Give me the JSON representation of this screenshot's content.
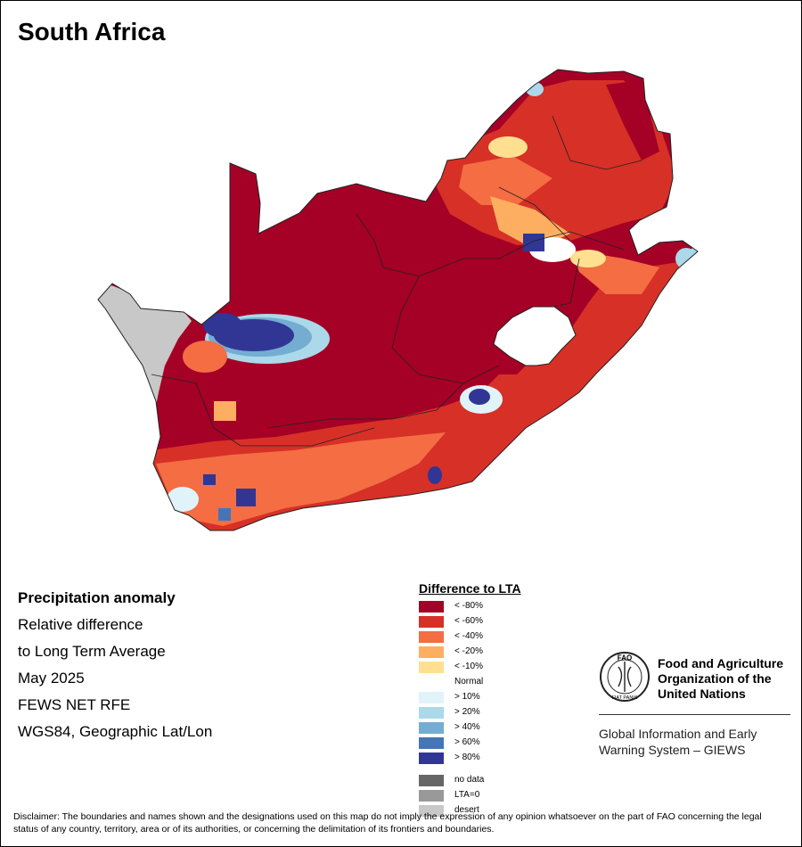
{
  "map": {
    "title": "South Africa",
    "info": {
      "heading": "Precipitation anomaly",
      "line1": "Relative difference",
      "line2": "to Long Term Average",
      "period": "May 2025",
      "source": "FEWS NET RFE",
      "projection": "WGS84, Geographic Lat/Lon"
    },
    "legend": {
      "title": "Difference to LTA",
      "items": [
        {
          "label": "< -80%",
          "color": "#a50026"
        },
        {
          "label": "< -60%",
          "color": "#d73027"
        },
        {
          "label": "< -40%",
          "color": "#f46d43"
        },
        {
          "label": "< -20%",
          "color": "#fdae61"
        },
        {
          "label": "< -10%",
          "color": "#fee090"
        },
        {
          "label": "Normal",
          "color": "#ffffff"
        },
        {
          "label": "> 10%",
          "color": "#e0f3f8"
        },
        {
          "label": "> 20%",
          "color": "#abd9e9"
        },
        {
          "label": "> 40%",
          "color": "#74add1"
        },
        {
          "label": "> 60%",
          "color": "#4575b4"
        },
        {
          "label": "> 80%",
          "color": "#313695"
        }
      ],
      "extra": [
        {
          "label": "no data",
          "color": "#666666"
        },
        {
          "label": "LTA=0",
          "color": "#999999"
        },
        {
          "label": "desert",
          "color": "#c8c8c8"
        }
      ]
    },
    "organization": {
      "name_line1": "Food and Agriculture",
      "name_line2": "Organization of the",
      "name_line3": "United Nations",
      "logo_text": "FAO",
      "logo_motto": "FIAT PANIS",
      "system_line1": "Global Information and Early",
      "system_line2": "Warning System – GIEWS"
    },
    "disclaimer": "Disclaimer: The boundaries and names shown and the designations used on this map do not imply the expression of any opinion whatsoever on the part of FAO concerning the legal status of any country, territory, area or of its authorities, or concerning the delimitation of its frontiers and boundaries."
  }
}
